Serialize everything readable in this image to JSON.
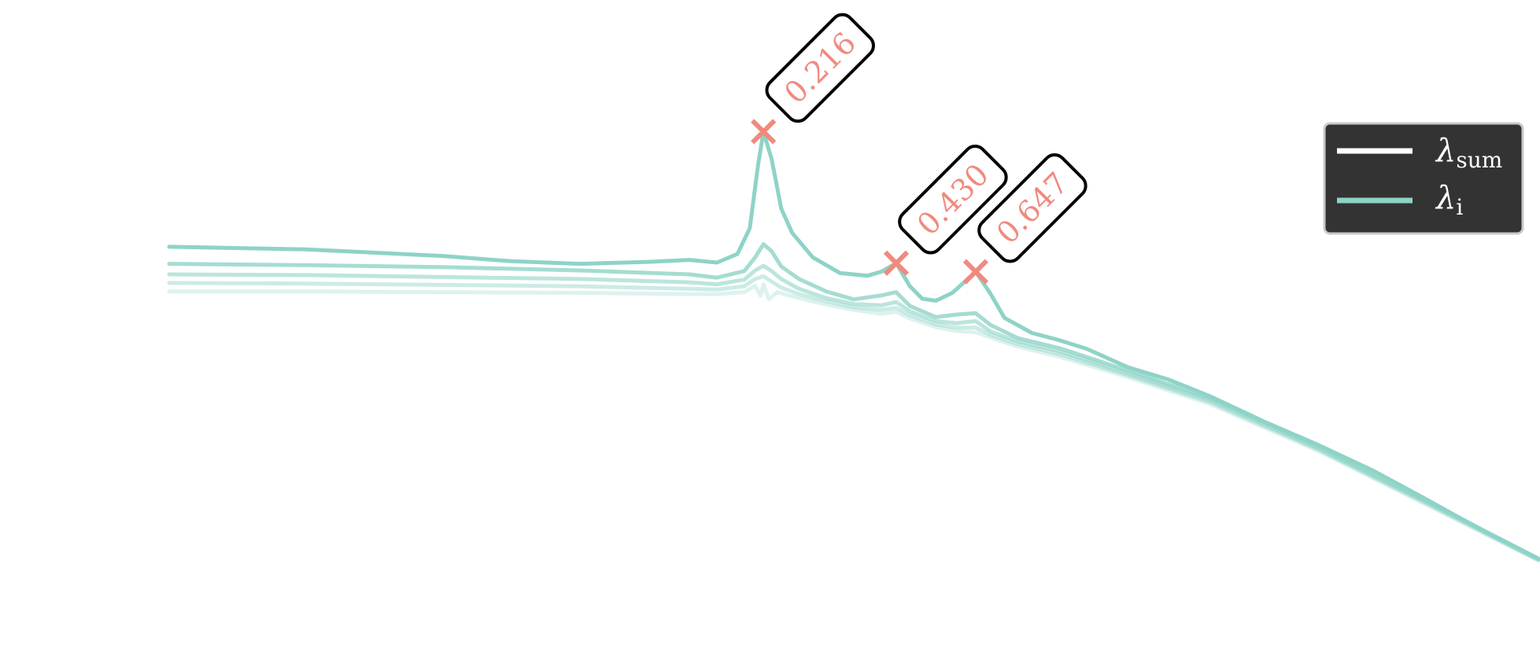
{
  "chart_data": {
    "type": "line",
    "title": "",
    "xlabel": "",
    "ylabel": "",
    "xlim": [
      0,
      1
    ],
    "ylim": [
      0,
      1
    ],
    "colors": {
      "series": "#8ed3c7",
      "sum": "#ffffff",
      "marker": "#f08a7e",
      "legend_bg": "#333333"
    },
    "legend": {
      "placement": "top-right",
      "entries": [
        {
          "name": "λ",
          "sub": "sum",
          "color": "#ffffff"
        },
        {
          "name": "λ",
          "sub": "i",
          "color": "#8ed3c7"
        }
      ]
    },
    "peaks": [
      {
        "x": 0.434,
        "y": 0.8,
        "label": "0.216"
      },
      {
        "x": 0.531,
        "y": 0.6,
        "label": "0.430"
      },
      {
        "x": 0.589,
        "y": 0.587,
        "label": "0.647"
      }
    ],
    "series": [
      {
        "opacity": 1.0,
        "points": [
          [
            0,
            0.625
          ],
          [
            0.1,
            0.621
          ],
          [
            0.2,
            0.611
          ],
          [
            0.25,
            0.603
          ],
          [
            0.3,
            0.599
          ],
          [
            0.35,
            0.602
          ],
          [
            0.38,
            0.605
          ],
          [
            0.4,
            0.601
          ],
          [
            0.415,
            0.614
          ],
          [
            0.424,
            0.653
          ],
          [
            0.43,
            0.748
          ],
          [
            0.434,
            0.8
          ],
          [
            0.44,
            0.758
          ],
          [
            0.447,
            0.683
          ],
          [
            0.455,
            0.646
          ],
          [
            0.47,
            0.609
          ],
          [
            0.49,
            0.585
          ],
          [
            0.51,
            0.581
          ],
          [
            0.52,
            0.587
          ],
          [
            0.531,
            0.6
          ],
          [
            0.541,
            0.565
          ],
          [
            0.55,
            0.546
          ],
          [
            0.56,
            0.543
          ],
          [
            0.572,
            0.555
          ],
          [
            0.589,
            0.587
          ],
          [
            0.6,
            0.553
          ],
          [
            0.61,
            0.517
          ],
          [
            0.63,
            0.494
          ],
          [
            0.65,
            0.483
          ],
          [
            0.67,
            0.47
          ],
          [
            0.7,
            0.442
          ],
          [
            0.73,
            0.423
          ],
          [
            0.76,
            0.398
          ],
          [
            0.8,
            0.359
          ],
          [
            0.84,
            0.323
          ],
          [
            0.88,
            0.284
          ],
          [
            0.92,
            0.239
          ],
          [
            0.96,
            0.193
          ],
          [
            1.0,
            0.151
          ]
        ]
      },
      {
        "opacity": 0.8,
        "points": [
          [
            0,
            0.599
          ],
          [
            0.1,
            0.597
          ],
          [
            0.2,
            0.594
          ],
          [
            0.3,
            0.589
          ],
          [
            0.38,
            0.583
          ],
          [
            0.4,
            0.578
          ],
          [
            0.42,
            0.588
          ],
          [
            0.428,
            0.609
          ],
          [
            0.434,
            0.629
          ],
          [
            0.44,
            0.618
          ],
          [
            0.447,
            0.595
          ],
          [
            0.46,
            0.576
          ],
          [
            0.48,
            0.557
          ],
          [
            0.5,
            0.545
          ],
          [
            0.52,
            0.551
          ],
          [
            0.531,
            0.556
          ],
          [
            0.541,
            0.535
          ],
          [
            0.56,
            0.518
          ],
          [
            0.575,
            0.522
          ],
          [
            0.589,
            0.524
          ],
          [
            0.6,
            0.506
          ],
          [
            0.62,
            0.486
          ],
          [
            0.65,
            0.471
          ],
          [
            0.7,
            0.437
          ],
          [
            0.76,
            0.395
          ],
          [
            0.84,
            0.321
          ],
          [
            0.92,
            0.237
          ],
          [
            1.0,
            0.151
          ]
        ]
      },
      {
        "opacity": 0.6,
        "points": [
          [
            0,
            0.583
          ],
          [
            0.1,
            0.582
          ],
          [
            0.2,
            0.579
          ],
          [
            0.3,
            0.576
          ],
          [
            0.38,
            0.571
          ],
          [
            0.4,
            0.568
          ],
          [
            0.42,
            0.575
          ],
          [
            0.428,
            0.589
          ],
          [
            0.434,
            0.596
          ],
          [
            0.44,
            0.588
          ],
          [
            0.447,
            0.576
          ],
          [
            0.46,
            0.561
          ],
          [
            0.48,
            0.547
          ],
          [
            0.5,
            0.538
          ],
          [
            0.52,
            0.536
          ],
          [
            0.531,
            0.541
          ],
          [
            0.541,
            0.527
          ],
          [
            0.56,
            0.512
          ],
          [
            0.575,
            0.509
          ],
          [
            0.589,
            0.512
          ],
          [
            0.6,
            0.496
          ],
          [
            0.62,
            0.481
          ],
          [
            0.65,
            0.466
          ],
          [
            0.7,
            0.433
          ],
          [
            0.76,
            0.392
          ],
          [
            0.84,
            0.318
          ],
          [
            0.92,
            0.235
          ],
          [
            1.0,
            0.15
          ]
        ]
      },
      {
        "opacity": 0.45,
        "points": [
          [
            0,
            0.57
          ],
          [
            0.1,
            0.569
          ],
          [
            0.2,
            0.567
          ],
          [
            0.3,
            0.565
          ],
          [
            0.38,
            0.561
          ],
          [
            0.4,
            0.56
          ],
          [
            0.42,
            0.565
          ],
          [
            0.428,
            0.576
          ],
          [
            0.434,
            0.58
          ],
          [
            0.44,
            0.572
          ],
          [
            0.447,
            0.563
          ],
          [
            0.46,
            0.553
          ],
          [
            0.48,
            0.542
          ],
          [
            0.5,
            0.533
          ],
          [
            0.52,
            0.529
          ],
          [
            0.531,
            0.532
          ],
          [
            0.541,
            0.521
          ],
          [
            0.56,
            0.507
          ],
          [
            0.575,
            0.502
          ],
          [
            0.589,
            0.502
          ],
          [
            0.6,
            0.491
          ],
          [
            0.62,
            0.477
          ],
          [
            0.65,
            0.462
          ],
          [
            0.7,
            0.43
          ],
          [
            0.76,
            0.389
          ],
          [
            0.84,
            0.316
          ],
          [
            0.92,
            0.233
          ],
          [
            1.0,
            0.149
          ]
        ]
      },
      {
        "opacity": 0.3,
        "points": [
          [
            0,
            0.557
          ],
          [
            0.1,
            0.557
          ],
          [
            0.2,
            0.556
          ],
          [
            0.3,
            0.555
          ],
          [
            0.38,
            0.553
          ],
          [
            0.4,
            0.553
          ],
          [
            0.42,
            0.556
          ],
          [
            0.428,
            0.566
          ],
          [
            0.432,
            0.55
          ],
          [
            0.434,
            0.568
          ],
          [
            0.438,
            0.545
          ],
          [
            0.444,
            0.556
          ],
          [
            0.46,
            0.547
          ],
          [
            0.48,
            0.537
          ],
          [
            0.5,
            0.529
          ],
          [
            0.52,
            0.523
          ],
          [
            0.531,
            0.526
          ],
          [
            0.541,
            0.516
          ],
          [
            0.56,
            0.503
          ],
          [
            0.575,
            0.497
          ],
          [
            0.589,
            0.495
          ],
          [
            0.6,
            0.487
          ],
          [
            0.62,
            0.473
          ],
          [
            0.65,
            0.458
          ],
          [
            0.7,
            0.427
          ],
          [
            0.76,
            0.386
          ],
          [
            0.84,
            0.314
          ],
          [
            0.92,
            0.231
          ],
          [
            1.0,
            0.148
          ]
        ]
      }
    ]
  }
}
